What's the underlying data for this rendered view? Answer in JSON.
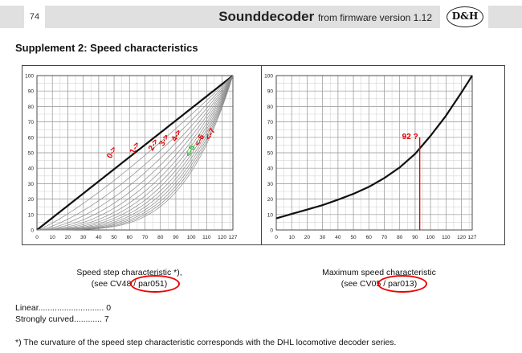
{
  "header": {
    "page_number": "74",
    "title": "Sounddecoder",
    "subtitle": "from firmware version 1.12",
    "logo_text": "D&H"
  },
  "section_title": "Supplement 2: Speed characteristics",
  "chart_data": [
    {
      "type": "line",
      "x_ticks": [
        0,
        10,
        20,
        30,
        40,
        50,
        60,
        70,
        80,
        90,
        100,
        110,
        120,
        127
      ],
      "y_ticks": [
        0,
        10,
        20,
        30,
        40,
        50,
        60,
        70,
        80,
        90,
        100
      ],
      "xlim": [
        0,
        127
      ],
      "ylim": [
        0,
        100
      ],
      "grid": true,
      "curve_family": "speed step characteristic, curvature 0 (linear) to 7 (strongly curved), each from (0,0) to (127,100)",
      "curve_levels": [
        0,
        1,
        2,
        3,
        4,
        5,
        6,
        7
      ],
      "annotations": [
        {
          "text": "0->",
          "color": "#e00000",
          "x": 48,
          "y": 46
        },
        {
          "text": "1->",
          "color": "#e00000",
          "x": 63,
          "y": 49
        },
        {
          "text": "2->",
          "color": "#e00000",
          "x": 75,
          "y": 51
        },
        {
          "text": "3->",
          "color": "#e00000",
          "x": 82,
          "y": 54
        },
        {
          "text": "4->",
          "color": "#e00000",
          "x": 90,
          "y": 57
        },
        {
          "text": "<-5",
          "color": "#22cc22",
          "x": 99,
          "y": 47
        },
        {
          "text": "<-6",
          "color": "#e00000",
          "x": 105,
          "y": 54
        },
        {
          "text": "<-7",
          "color": "#e00000",
          "x": 112,
          "y": 58
        }
      ],
      "caption_line1": "Speed step characteristic *),",
      "caption_line2_pre": "(see CV48 / ",
      "caption_param": "par051",
      "caption_line2_post": ")"
    },
    {
      "type": "line",
      "x_ticks": [
        0,
        10,
        20,
        30,
        40,
        50,
        60,
        70,
        80,
        90,
        100,
        110,
        120,
        127
      ],
      "y_ticks": [
        0,
        10,
        20,
        30,
        40,
        50,
        60,
        70,
        80,
        90,
        100
      ],
      "xlim": [
        0,
        127
      ],
      "ylim": [
        0,
        100
      ],
      "grid": true,
      "x": [
        0,
        10,
        20,
        30,
        40,
        50,
        60,
        70,
        80,
        90,
        100,
        110,
        120,
        127
      ],
      "y": [
        7.5,
        10.4,
        13.2,
        16.1,
        19.6,
        23.4,
        27.9,
        33.6,
        40.5,
        49.3,
        61,
        74,
        89,
        100
      ],
      "marker_line": {
        "x": 93,
        "y_top": 60,
        "color": "#e00000"
      },
      "marker_label": "92 ?",
      "caption_line1": "Maximum speed characteristic",
      "caption_line2_pre": "(see CV05 / ",
      "caption_param": "par013",
      "caption_line2_post": ")"
    }
  ],
  "legend_list": [
    {
      "label": "Linear",
      "value": "0"
    },
    {
      "label": "Strongly curved",
      "value": "7"
    }
  ],
  "footnote": "*) The curvature of the speed step characteristic corresponds with the DHL locomotive decoder series.",
  "colors": {
    "annotation_red": "#e00000",
    "annotation_green": "#22cc22",
    "header_grey": "#e0e0e0"
  }
}
